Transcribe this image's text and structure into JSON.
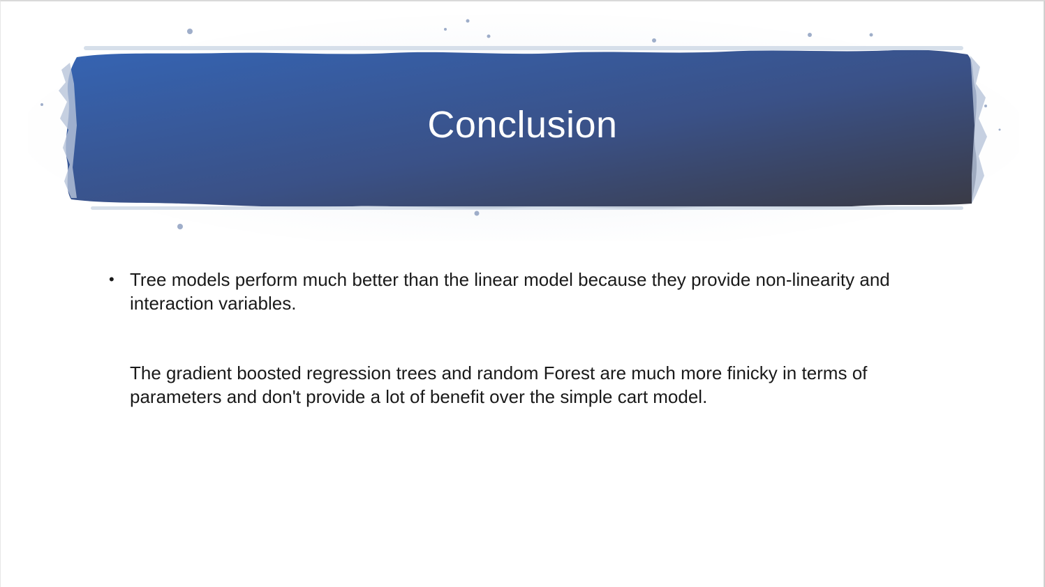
{
  "slide": {
    "title": "Conclusion",
    "bullets": [
      {
        "marker": "•",
        "text": "Tree models perform much better than the linear model because they provide non-linearity and interaction variables."
      }
    ],
    "paragraph": "The gradient boosted regression trees and random Forest are much more finicky in terms of parameters and don't provide a lot of benefit over the simple cart model."
  },
  "colors": {
    "banner_start": "#3462b0",
    "banner_end": "#3a3b47",
    "title_text": "#ffffff",
    "body_text": "#1a1a1a",
    "background": "#ffffff"
  }
}
